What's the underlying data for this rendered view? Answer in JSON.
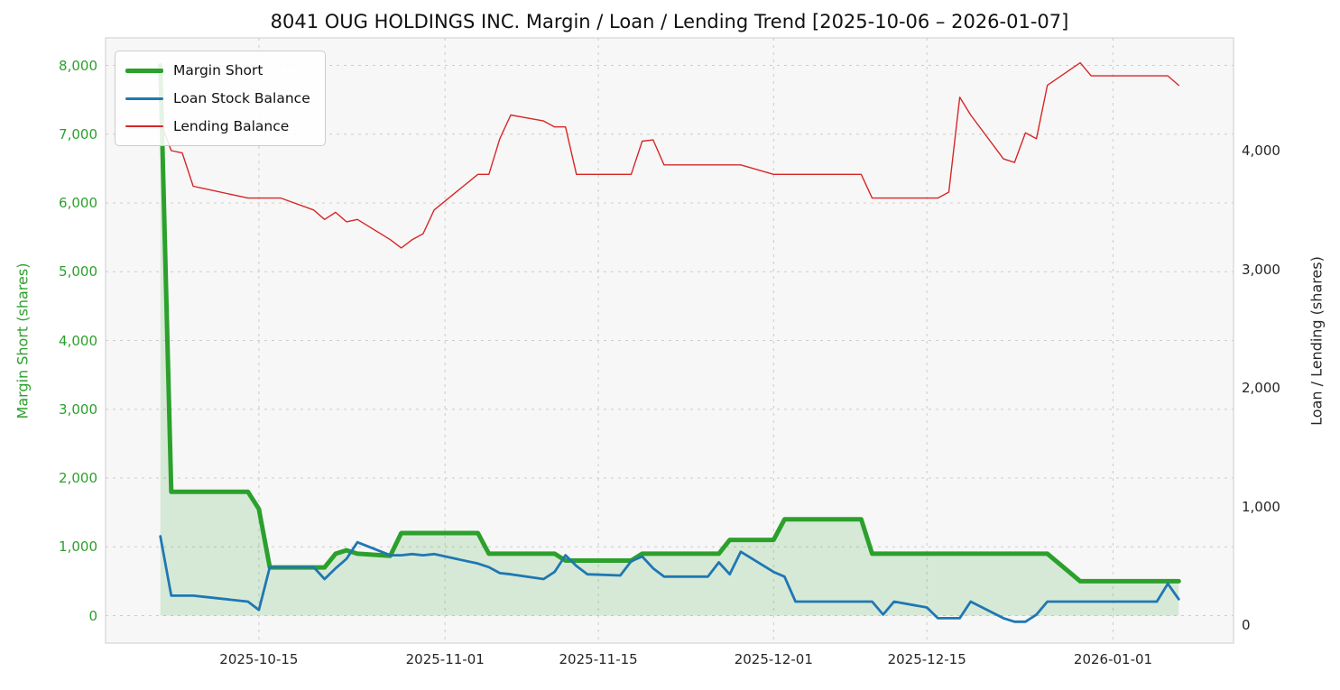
{
  "title": "8041 OUG HOLDINGS INC. Margin / Loan / Lending Trend [2025-10-06 – 2026-01-07]",
  "axes": {
    "left_label": "Margin Short (shares)",
    "right_label": "Loan / Lending (shares)"
  },
  "legend": {
    "position": "upper left",
    "items": [
      {
        "label": "Margin Short",
        "color": "#2ca02c",
        "thickness": 5
      },
      {
        "label": "Loan Stock Balance",
        "color": "#1f77b4",
        "thickness": 3
      },
      {
        "label": "Lending Balance",
        "color": "#d62728",
        "thickness": 1.5
      }
    ]
  },
  "colors": {
    "margin_short": "#2ca02c",
    "margin_short_fill": "#2ca02c",
    "loan_stock_balance": "#1f77b4",
    "lending_balance": "#d62728",
    "plot_background": "#f7f7f7",
    "grid": "#cccccc",
    "spine": "#d4d4d4",
    "left_tick_text": "#2ca02c",
    "tick_text": "#262626"
  },
  "chart_data": {
    "type": "line",
    "title": "8041 OUG HOLDINGS INC. Margin / Loan / Lending Trend [2025-10-06 – 2026-01-07]",
    "x_start": "2025-10-06",
    "x_end": "2026-01-07",
    "grid": true,
    "legend_position": "upper left",
    "x": [
      "2025-10-06",
      "2025-10-07",
      "2025-10-08",
      "2025-10-09",
      "2025-10-10",
      "2025-10-14",
      "2025-10-15",
      "2025-10-16",
      "2025-10-17",
      "2025-10-20",
      "2025-10-21",
      "2025-10-22",
      "2025-10-23",
      "2025-10-24",
      "2025-10-27",
      "2025-10-28",
      "2025-10-29",
      "2025-10-30",
      "2025-10-31",
      "2025-11-04",
      "2025-11-05",
      "2025-11-06",
      "2025-11-07",
      "2025-11-10",
      "2025-11-11",
      "2025-11-12",
      "2025-11-13",
      "2025-11-14",
      "2025-11-17",
      "2025-11-18",
      "2025-11-19",
      "2025-11-20",
      "2025-11-21",
      "2025-11-25",
      "2025-11-26",
      "2025-11-27",
      "2025-11-28",
      "2025-12-01",
      "2025-12-02",
      "2025-12-03",
      "2025-12-04",
      "2025-12-05",
      "2025-12-08",
      "2025-12-09",
      "2025-12-10",
      "2025-12-11",
      "2025-12-12",
      "2025-12-15",
      "2025-12-16",
      "2025-12-17",
      "2025-12-18",
      "2025-12-19",
      "2025-12-22",
      "2025-12-23",
      "2025-12-24",
      "2025-12-25",
      "2025-12-26",
      "2025-12-29",
      "2025-12-30",
      "2026-01-05",
      "2026-01-06",
      "2026-01-07"
    ],
    "series": [
      {
        "name": "Margin Short",
        "axis": "left",
        "color": "#2ca02c",
        "line_width": 5,
        "fill_to_zero": true,
        "fill_opacity": 0.16,
        "values": [
          8000,
          1800,
          1800,
          1800,
          1800,
          1800,
          1550,
          700,
          700,
          700,
          700,
          900,
          950,
          900,
          870,
          1200,
          1200,
          1200,
          1200,
          1200,
          900,
          900,
          900,
          900,
          900,
          800,
          800,
          800,
          800,
          800,
          900,
          900,
          900,
          900,
          900,
          1100,
          1100,
          1100,
          1400,
          1400,
          1400,
          1400,
          1400,
          1400,
          900,
          900,
          900,
          900,
          900,
          900,
          900,
          900,
          900,
          900,
          900,
          900,
          900,
          500,
          500,
          500,
          500,
          500
        ]
      },
      {
        "name": "Loan Stock Balance",
        "axis": "right",
        "color": "#1f77b4",
        "line_width": 2.8,
        "fill_to_zero": false,
        "values": [
          750,
          250,
          250,
          250,
          240,
          200,
          130,
          490,
          490,
          490,
          390,
          480,
          560,
          700,
          590,
          590,
          600,
          590,
          600,
          520,
          490,
          440,
          430,
          390,
          450,
          590,
          500,
          430,
          420,
          540,
          580,
          480,
          410,
          410,
          530,
          430,
          620,
          450,
          410,
          200,
          200,
          200,
          200,
          200,
          200,
          90,
          200,
          150,
          60,
          60,
          60,
          200,
          60,
          30,
          30,
          90,
          200,
          200,
          200,
          200,
          350,
          220
        ]
      },
      {
        "name": "Lending Balance",
        "axis": "right",
        "color": "#d62728",
        "line_width": 1.4,
        "fill_to_zero": false,
        "values": [
          4240,
          4000,
          3980,
          3700,
          3680,
          3600,
          3600,
          3600,
          3600,
          3500,
          3420,
          3480,
          3400,
          3420,
          3250,
          3180,
          3250,
          3300,
          3500,
          3800,
          3800,
          4100,
          4300,
          4250,
          4200,
          4200,
          3800,
          3800,
          3800,
          3800,
          4080,
          4090,
          3880,
          3880,
          3880,
          3880,
          3880,
          3800,
          3800,
          3800,
          3800,
          3800,
          3800,
          3800,
          3600,
          3600,
          3600,
          3600,
          3600,
          3650,
          4450,
          4300,
          3930,
          3900,
          4150,
          4100,
          4550,
          4740,
          4630,
          4630,
          4630,
          4550
        ]
      }
    ],
    "left_axis": {
      "label": "Margin Short (shares)",
      "ylim": [
        -400,
        8400
      ],
      "ticks": [
        {
          "value": 0,
          "label": "0"
        },
        {
          "value": 1000,
          "label": "1,000"
        },
        {
          "value": 2000,
          "label": "2,000"
        },
        {
          "value": 3000,
          "label": "3,000"
        },
        {
          "value": 4000,
          "label": "4,000"
        },
        {
          "value": 5000,
          "label": "5,000"
        },
        {
          "value": 6000,
          "label": "6,000"
        },
        {
          "value": 7000,
          "label": "7,000"
        },
        {
          "value": 8000,
          "label": "8,000"
        }
      ]
    },
    "right_axis": {
      "label": "Loan / Lending (shares)",
      "ylim": [
        -150,
        4950
      ],
      "ticks": [
        {
          "value": 0,
          "label": "0"
        },
        {
          "value": 1000,
          "label": "1,000"
        },
        {
          "value": 2000,
          "label": "2,000"
        },
        {
          "value": 3000,
          "label": "3,000"
        },
        {
          "value": 4000,
          "label": "4,000"
        }
      ]
    },
    "x_axis": {
      "xlim_days": [
        -5,
        98
      ],
      "ticks": [
        {
          "date": "2025-10-15",
          "label": "2025-10-15"
        },
        {
          "date": "2025-11-01",
          "label": "2025-11-01"
        },
        {
          "date": "2025-11-15",
          "label": "2025-11-15"
        },
        {
          "date": "2025-12-01",
          "label": "2025-12-01"
        },
        {
          "date": "2025-12-15",
          "label": "2025-12-15"
        },
        {
          "date": "2026-01-01",
          "label": "2026-01-01"
        }
      ]
    }
  }
}
